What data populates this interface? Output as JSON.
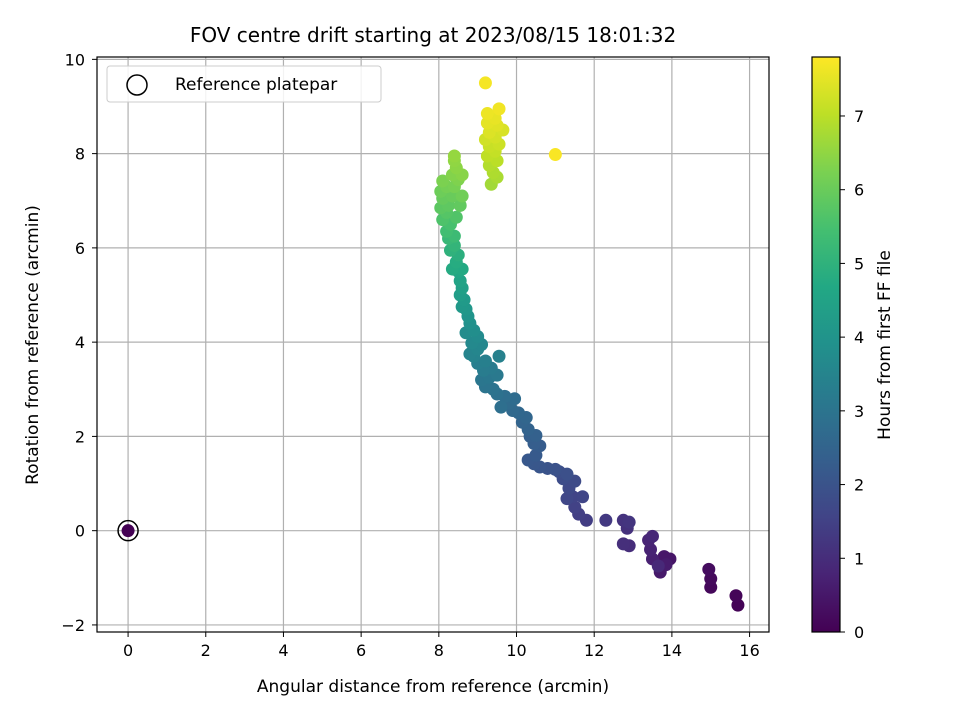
{
  "chart_data": {
    "type": "scatter",
    "title": "FOV centre drift starting at 2023/08/15 18:01:32",
    "xlabel": "Angular distance from reference (arcmin)",
    "ylabel": "Rotation from reference (arcmin)",
    "colorbar_label": "Hours from first FF file",
    "colormap": "viridis",
    "xlim": [
      -0.8,
      16.5
    ],
    "ylim": [
      -2.15,
      10.05
    ],
    "clim": [
      0,
      7.8
    ],
    "xticks": [
      0,
      2,
      4,
      6,
      8,
      10,
      12,
      14,
      16
    ],
    "yticks": [
      -2,
      0,
      2,
      4,
      6,
      8,
      10
    ],
    "cticks": [
      0,
      1,
      2,
      3,
      4,
      5,
      6,
      7
    ],
    "grid": true,
    "legend": {
      "placement": "top-left",
      "entries": [
        "Reference platepar"
      ]
    },
    "reference_point": {
      "x": 0,
      "y": 0,
      "c": 0
    },
    "points": [
      {
        "x": 15.7,
        "y": -1.58,
        "c": 0.05
      },
      {
        "x": 15.65,
        "y": -1.38,
        "c": 0.1
      },
      {
        "x": 15.0,
        "y": -1.2,
        "c": 0.15
      },
      {
        "x": 15.0,
        "y": -1.02,
        "c": 0.2
      },
      {
        "x": 14.95,
        "y": -0.82,
        "c": 0.25
      },
      {
        "x": 13.95,
        "y": -0.6,
        "c": 0.45
      },
      {
        "x": 13.8,
        "y": -0.55,
        "c": 0.5
      },
      {
        "x": 13.7,
        "y": -0.88,
        "c": 0.55
      },
      {
        "x": 13.85,
        "y": -0.72,
        "c": 0.6
      },
      {
        "x": 13.5,
        "y": -0.6,
        "c": 0.7
      },
      {
        "x": 13.45,
        "y": -0.4,
        "c": 0.75
      },
      {
        "x": 13.4,
        "y": -0.2,
        "c": 0.8
      },
      {
        "x": 13.5,
        "y": -0.12,
        "c": 0.85
      },
      {
        "x": 13.65,
        "y": -0.75,
        "c": 0.9
      },
      {
        "x": 12.9,
        "y": -0.32,
        "c": 1.0
      },
      {
        "x": 12.75,
        "y": -0.28,
        "c": 1.05
      },
      {
        "x": 12.85,
        "y": 0.05,
        "c": 1.1
      },
      {
        "x": 12.75,
        "y": 0.22,
        "c": 1.15
      },
      {
        "x": 12.9,
        "y": 0.18,
        "c": 1.2
      },
      {
        "x": 12.3,
        "y": 0.22,
        "c": 1.3
      },
      {
        "x": 11.8,
        "y": 0.22,
        "c": 1.4
      },
      {
        "x": 11.6,
        "y": 0.35,
        "c": 1.45
      },
      {
        "x": 11.5,
        "y": 0.5,
        "c": 1.5
      },
      {
        "x": 11.45,
        "y": 0.72,
        "c": 1.55
      },
      {
        "x": 11.7,
        "y": 0.72,
        "c": 1.6
      },
      {
        "x": 11.3,
        "y": 0.68,
        "c": 1.65
      },
      {
        "x": 11.35,
        "y": 0.9,
        "c": 1.7
      },
      {
        "x": 11.5,
        "y": 1.05,
        "c": 1.75
      },
      {
        "x": 11.2,
        "y": 1.1,
        "c": 1.8
      },
      {
        "x": 11.1,
        "y": 1.25,
        "c": 1.85
      },
      {
        "x": 11.3,
        "y": 1.2,
        "c": 1.9
      },
      {
        "x": 11.0,
        "y": 1.3,
        "c": 1.95
      },
      {
        "x": 10.8,
        "y": 1.32,
        "c": 2.0
      },
      {
        "x": 10.6,
        "y": 1.35,
        "c": 2.05
      },
      {
        "x": 10.45,
        "y": 1.42,
        "c": 2.1
      },
      {
        "x": 10.3,
        "y": 1.5,
        "c": 2.15
      },
      {
        "x": 10.5,
        "y": 1.6,
        "c": 2.2
      },
      {
        "x": 10.6,
        "y": 1.8,
        "c": 2.25
      },
      {
        "x": 10.45,
        "y": 1.85,
        "c": 2.3
      },
      {
        "x": 10.35,
        "y": 2.0,
        "c": 2.35
      },
      {
        "x": 10.5,
        "y": 2.02,
        "c": 2.4
      },
      {
        "x": 10.3,
        "y": 2.15,
        "c": 2.45
      },
      {
        "x": 10.15,
        "y": 2.3,
        "c": 2.5
      },
      {
        "x": 10.25,
        "y": 2.4,
        "c": 2.55
      },
      {
        "x": 10.05,
        "y": 2.5,
        "c": 2.6
      },
      {
        "x": 9.9,
        "y": 2.55,
        "c": 2.65
      },
      {
        "x": 9.8,
        "y": 2.7,
        "c": 2.7
      },
      {
        "x": 9.95,
        "y": 2.8,
        "c": 2.75
      },
      {
        "x": 9.7,
        "y": 2.85,
        "c": 2.8
      },
      {
        "x": 9.6,
        "y": 2.62,
        "c": 2.85
      },
      {
        "x": 9.5,
        "y": 2.9,
        "c": 2.9
      },
      {
        "x": 9.4,
        "y": 3.0,
        "c": 2.95
      },
      {
        "x": 9.2,
        "y": 3.05,
        "c": 3.0
      },
      {
        "x": 9.1,
        "y": 3.2,
        "c": 3.05
      },
      {
        "x": 9.3,
        "y": 3.25,
        "c": 3.1
      },
      {
        "x": 9.5,
        "y": 3.3,
        "c": 3.15
      },
      {
        "x": 9.35,
        "y": 3.45,
        "c": 3.2
      },
      {
        "x": 9.15,
        "y": 3.4,
        "c": 3.25
      },
      {
        "x": 9.0,
        "y": 3.55,
        "c": 3.3
      },
      {
        "x": 9.2,
        "y": 3.6,
        "c": 3.35
      },
      {
        "x": 9.55,
        "y": 3.7,
        "c": 3.4
      },
      {
        "x": 8.9,
        "y": 3.7,
        "c": 3.45
      },
      {
        "x": 8.8,
        "y": 3.75,
        "c": 3.5
      },
      {
        "x": 9.0,
        "y": 3.85,
        "c": 3.55
      },
      {
        "x": 9.1,
        "y": 3.95,
        "c": 3.6
      },
      {
        "x": 8.85,
        "y": 3.98,
        "c": 3.65
      },
      {
        "x": 9.0,
        "y": 4.12,
        "c": 3.7
      },
      {
        "x": 8.7,
        "y": 4.2,
        "c": 3.75
      },
      {
        "x": 8.9,
        "y": 4.25,
        "c": 3.8
      },
      {
        "x": 8.8,
        "y": 4.4,
        "c": 3.9
      },
      {
        "x": 8.75,
        "y": 4.55,
        "c": 4.0
      },
      {
        "x": 8.7,
        "y": 4.7,
        "c": 4.1
      },
      {
        "x": 8.6,
        "y": 4.75,
        "c": 4.15
      },
      {
        "x": 8.65,
        "y": 4.9,
        "c": 4.2
      },
      {
        "x": 8.55,
        "y": 5.0,
        "c": 4.3
      },
      {
        "x": 8.6,
        "y": 5.15,
        "c": 4.4
      },
      {
        "x": 8.55,
        "y": 5.3,
        "c": 4.5
      },
      {
        "x": 8.5,
        "y": 5.5,
        "c": 4.6
      },
      {
        "x": 8.6,
        "y": 5.55,
        "c": 4.7
      },
      {
        "x": 8.35,
        "y": 5.55,
        "c": 4.75
      },
      {
        "x": 8.45,
        "y": 5.7,
        "c": 4.8
      },
      {
        "x": 8.5,
        "y": 5.85,
        "c": 4.9
      },
      {
        "x": 8.3,
        "y": 5.95,
        "c": 5.0
      },
      {
        "x": 8.4,
        "y": 6.05,
        "c": 5.1
      },
      {
        "x": 8.25,
        "y": 6.2,
        "c": 5.2
      },
      {
        "x": 8.4,
        "y": 6.25,
        "c": 5.3
      },
      {
        "x": 8.2,
        "y": 6.35,
        "c": 5.4
      },
      {
        "x": 8.3,
        "y": 6.5,
        "c": 5.5
      },
      {
        "x": 8.1,
        "y": 6.6,
        "c": 5.6
      },
      {
        "x": 8.45,
        "y": 6.65,
        "c": 5.65
      },
      {
        "x": 8.2,
        "y": 6.75,
        "c": 5.7
      },
      {
        "x": 8.05,
        "y": 6.85,
        "c": 5.8
      },
      {
        "x": 8.25,
        "y": 6.9,
        "c": 5.85
      },
      {
        "x": 8.55,
        "y": 6.9,
        "c": 5.9
      },
      {
        "x": 8.1,
        "y": 7.05,
        "c": 5.95
      },
      {
        "x": 8.35,
        "y": 7.1,
        "c": 6.0
      },
      {
        "x": 8.05,
        "y": 7.2,
        "c": 6.05
      },
      {
        "x": 8.6,
        "y": 7.1,
        "c": 6.1
      },
      {
        "x": 8.2,
        "y": 7.3,
        "c": 6.15
      },
      {
        "x": 8.4,
        "y": 7.3,
        "c": 6.2
      },
      {
        "x": 8.1,
        "y": 7.42,
        "c": 6.25
      },
      {
        "x": 8.5,
        "y": 7.45,
        "c": 6.3
      },
      {
        "x": 8.35,
        "y": 7.55,
        "c": 6.35
      },
      {
        "x": 8.6,
        "y": 7.55,
        "c": 6.4
      },
      {
        "x": 8.45,
        "y": 7.7,
        "c": 6.45
      },
      {
        "x": 8.4,
        "y": 7.85,
        "c": 6.5
      },
      {
        "x": 8.4,
        "y": 7.95,
        "c": 6.55
      },
      {
        "x": 9.35,
        "y": 7.35,
        "c": 6.7
      },
      {
        "x": 9.5,
        "y": 7.5,
        "c": 6.8
      },
      {
        "x": 9.4,
        "y": 7.6,
        "c": 6.85
      },
      {
        "x": 9.3,
        "y": 7.75,
        "c": 6.9
      },
      {
        "x": 9.5,
        "y": 7.85,
        "c": 7.0
      },
      {
        "x": 9.25,
        "y": 7.95,
        "c": 7.05
      },
      {
        "x": 9.45,
        "y": 8.05,
        "c": 7.1
      },
      {
        "x": 9.3,
        "y": 8.15,
        "c": 7.15
      },
      {
        "x": 9.55,
        "y": 8.2,
        "c": 7.2
      },
      {
        "x": 9.2,
        "y": 8.3,
        "c": 7.25
      },
      {
        "x": 9.45,
        "y": 8.35,
        "c": 7.3
      },
      {
        "x": 9.65,
        "y": 8.5,
        "c": 7.35
      },
      {
        "x": 9.3,
        "y": 8.45,
        "c": 7.4
      },
      {
        "x": 9.5,
        "y": 8.6,
        "c": 7.45
      },
      {
        "x": 9.25,
        "y": 8.65,
        "c": 7.5
      },
      {
        "x": 9.45,
        "y": 8.75,
        "c": 7.55
      },
      {
        "x": 9.25,
        "y": 8.85,
        "c": 7.6
      },
      {
        "x": 9.55,
        "y": 8.95,
        "c": 7.65
      },
      {
        "x": 9.2,
        "y": 9.5,
        "c": 7.7
      },
      {
        "x": 11.0,
        "y": 7.98,
        "c": 7.75
      }
    ]
  }
}
